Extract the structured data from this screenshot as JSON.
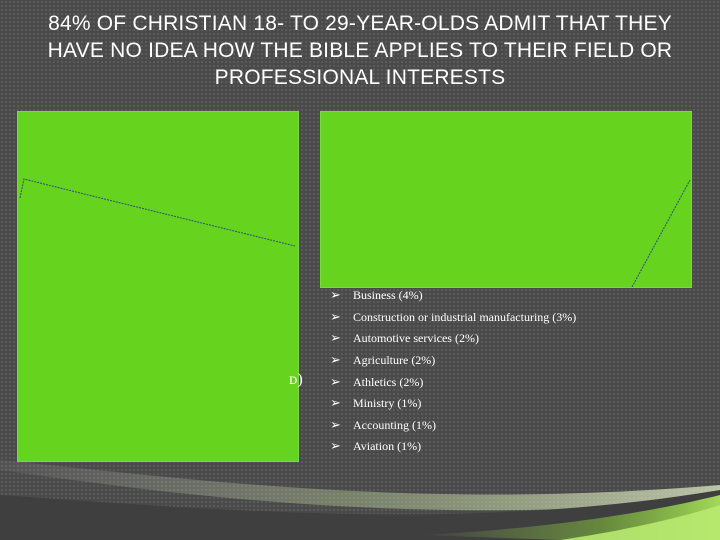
{
  "slide": {
    "title": "84% OF CHRISTIAN 18- TO 29-YEAR-OLDS ADMIT THAT THEY HAVE NO IDEA HOW THE BIBLE APPLIES TO THEIR FIELD OR PROFESSIONAL INTERESTS",
    "cut_fragment": "ᴅ)",
    "bullet_icon": "arrow-bullet-icon",
    "careers": [
      {
        "label": "Business (4%)"
      },
      {
        "label": "Construction or industrial manufacturing (3%)"
      },
      {
        "label": "Automotive services (2%)"
      },
      {
        "label": "Agriculture (2%)"
      },
      {
        "label": "Athletics (2%)"
      },
      {
        "label": "Ministry (1%)"
      },
      {
        "label": "Accounting (1%)"
      },
      {
        "label": "Aviation (1%)"
      }
    ],
    "colors": {
      "panel_green": "#66d31e",
      "accent_green": "#a8e05a",
      "background": "#4a4a4a"
    }
  }
}
